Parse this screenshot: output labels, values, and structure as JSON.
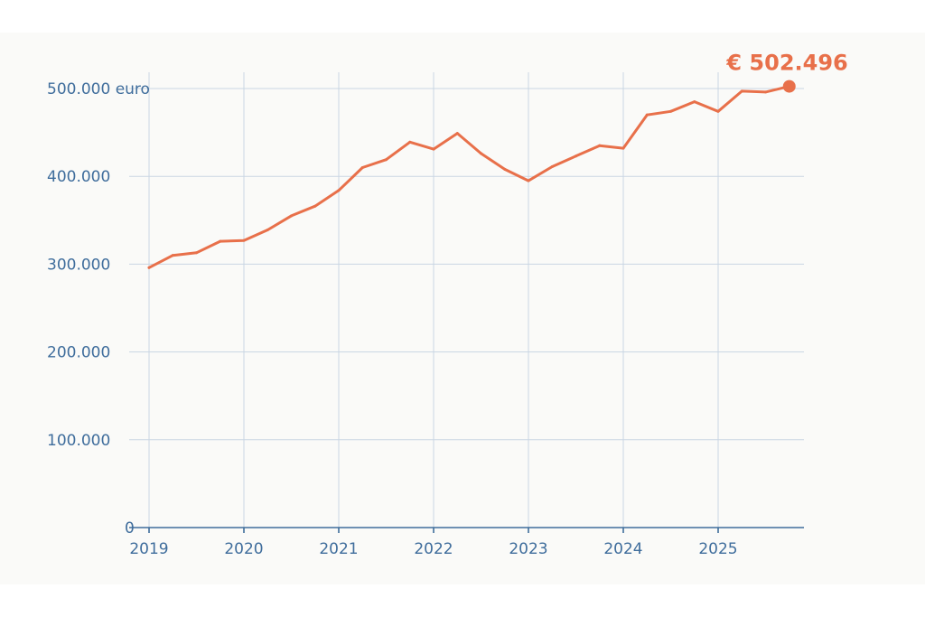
{
  "chart_data": {
    "type": "line",
    "y_ticks": [
      {
        "value": 500000,
        "label": "500.000 euro"
      },
      {
        "value": 400000,
        "label": "400.000"
      },
      {
        "value": 300000,
        "label": "300.000"
      },
      {
        "value": 200000,
        "label": "200.000"
      },
      {
        "value": 100000,
        "label": "100.000"
      },
      {
        "value": 0,
        "label": "0"
      }
    ],
    "x_ticks": [
      {
        "value": 2019,
        "label": "2019"
      },
      {
        "value": 2020,
        "label": "2020"
      },
      {
        "value": 2021,
        "label": "2021"
      },
      {
        "value": 2022,
        "label": "2022"
      },
      {
        "value": 2023,
        "label": "2023"
      },
      {
        "value": 2024,
        "label": "2024"
      },
      {
        "value": 2025,
        "label": "2025"
      }
    ],
    "xlim": [
      2019,
      2026
    ],
    "ylim": [
      0,
      500000
    ],
    "grid": true,
    "series": [
      {
        "color": "#e8704a",
        "points": [
          {
            "x": 2019.0,
            "y": 296000
          },
          {
            "x": 2019.25,
            "y": 310000
          },
          {
            "x": 2019.5,
            "y": 313000
          },
          {
            "x": 2019.75,
            "y": 326000
          },
          {
            "x": 2020.0,
            "y": 327000
          },
          {
            "x": 2020.25,
            "y": 339000
          },
          {
            "x": 2020.5,
            "y": 355000
          },
          {
            "x": 2020.75,
            "y": 366000
          },
          {
            "x": 2021.0,
            "y": 384000
          },
          {
            "x": 2021.25,
            "y": 410000
          },
          {
            "x": 2021.5,
            "y": 419000
          },
          {
            "x": 2021.75,
            "y": 439000
          },
          {
            "x": 2022.0,
            "y": 431000
          },
          {
            "x": 2022.25,
            "y": 449000
          },
          {
            "x": 2022.5,
            "y": 426000
          },
          {
            "x": 2022.75,
            "y": 408000
          },
          {
            "x": 2023.0,
            "y": 395000
          },
          {
            "x": 2023.25,
            "y": 411000
          },
          {
            "x": 2023.5,
            "y": 423000
          },
          {
            "x": 2023.75,
            "y": 435000
          },
          {
            "x": 2024.0,
            "y": 432000
          },
          {
            "x": 2024.25,
            "y": 470000
          },
          {
            "x": 2024.5,
            "y": 474000
          },
          {
            "x": 2024.75,
            "y": 485000
          },
          {
            "x": 2025.0,
            "y": 474000
          },
          {
            "x": 2025.25,
            "y": 497000
          },
          {
            "x": 2025.5,
            "y": 496000
          },
          {
            "x": 2025.75,
            "y": 502496
          }
        ]
      }
    ],
    "end_annotation": {
      "text": "€ 502.496",
      "x": 2025.75,
      "y": 502496,
      "color": "#e8704a"
    }
  },
  "colors": {
    "panel_background": "#fafaf8",
    "axis_text": "#3f6d9c",
    "grid": "#c9d6e3",
    "line": "#e8704a"
  }
}
